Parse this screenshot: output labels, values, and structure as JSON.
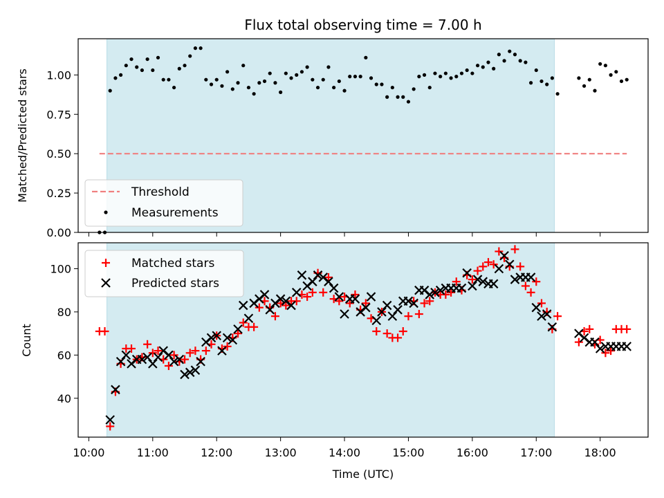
{
  "chart_data": [
    {
      "type": "scatter",
      "title": "Flux total observing time = 7.00 h",
      "xlabel": "",
      "ylabel": "Matched/Predicted stars",
      "xlim": [
        "09:50",
        "18:45"
      ],
      "ylim": [
        0.0,
        1.23
      ],
      "yticks": [
        0.0,
        0.25,
        0.5,
        0.75,
        1.0
      ],
      "ytick_labels": [
        "0.00",
        "0.25",
        "0.50",
        "0.75",
        "1.00"
      ],
      "shaded_interval": [
        "10:17",
        "17:17"
      ],
      "shade_color": "#d4ebf1",
      "threshold": {
        "name": "Threshold",
        "y": 0.5,
        "x_range": [
          "10:10",
          "18:25"
        ],
        "color": "#f07f7f"
      },
      "series": [
        {
          "name": "Measurements",
          "marker": "dot",
          "color": "#000000",
          "x": [
            "10:10",
            "10:15",
            "10:20",
            "10:25",
            "10:30",
            "10:35",
            "10:40",
            "10:45",
            "10:50",
            "10:55",
            "11:00",
            "11:05",
            "11:10",
            "11:15",
            "11:20",
            "11:25",
            "11:30",
            "11:35",
            "11:40",
            "11:45",
            "11:50",
            "11:55",
            "12:00",
            "12:05",
            "12:10",
            "12:15",
            "12:20",
            "12:25",
            "12:30",
            "12:35",
            "12:40",
            "12:45",
            "12:50",
            "12:55",
            "13:00",
            "13:05",
            "13:10",
            "13:15",
            "13:20",
            "13:25",
            "13:30",
            "13:35",
            "13:40",
            "13:45",
            "13:50",
            "13:55",
            "14:00",
            "14:05",
            "14:10",
            "14:15",
            "14:20",
            "14:25",
            "14:30",
            "14:35",
            "14:40",
            "14:45",
            "14:50",
            "14:55",
            "15:00",
            "15:05",
            "15:10",
            "15:15",
            "15:20",
            "15:25",
            "15:30",
            "15:35",
            "15:40",
            "15:45",
            "15:50",
            "15:55",
            "16:00",
            "16:05",
            "16:10",
            "16:15",
            "16:20",
            "16:25",
            "16:30",
            "16:35",
            "16:40",
            "16:45",
            "16:50",
            "16:55",
            "17:00",
            "17:05",
            "17:10",
            "17:15",
            "17:20",
            "17:40",
            "17:45",
            "17:50",
            "17:55",
            "18:00",
            "18:05",
            "18:10",
            "18:15",
            "18:20",
            "18:25"
          ],
          "y": [
            0.0,
            0.0,
            0.9,
            0.98,
            1.0,
            1.06,
            1.1,
            1.05,
            1.03,
            1.1,
            1.03,
            1.11,
            0.97,
            0.97,
            0.92,
            1.04,
            1.06,
            1.12,
            1.17,
            1.17,
            0.97,
            0.94,
            0.97,
            0.93,
            1.02,
            0.91,
            0.95,
            1.06,
            0.92,
            0.88,
            0.95,
            0.96,
            1.01,
            0.95,
            0.89,
            1.01,
            0.98,
            1.0,
            1.02,
            1.05,
            0.97,
            0.92,
            0.97,
            1.05,
            0.92,
            0.96,
            0.9,
            0.99,
            0.99,
            0.99,
            1.11,
            0.98,
            0.94,
            0.94,
            0.86,
            0.92,
            0.86,
            0.86,
            0.83,
            0.91,
            0.99,
            1.0,
            0.92,
            1.01,
            0.99,
            1.01,
            0.98,
            0.99,
            1.01,
            1.03,
            1.01,
            1.06,
            1.05,
            1.08,
            1.04,
            1.13,
            1.09,
            1.15,
            1.13,
            1.09,
            1.08,
            0.95,
            1.03,
            0.96,
            0.94,
            0.98,
            0.88,
            0.98,
            0.93,
            0.97,
            0.9,
            1.07,
            1.06,
            1.0,
            1.02,
            0.96,
            0.97
          ]
        }
      ],
      "legend": {
        "location": "lower-left",
        "entries": [
          "Threshold",
          "Measurements"
        ]
      }
    },
    {
      "type": "scatter",
      "title": "",
      "xlabel": "Time (UTC)",
      "ylabel": "Count",
      "xlim": [
        "09:50",
        "18:45"
      ],
      "ylim": [
        22,
        112
      ],
      "yticks": [
        40,
        60,
        80,
        100
      ],
      "xticks": [
        "10:00",
        "11:00",
        "12:00",
        "13:00",
        "14:00",
        "15:00",
        "16:00",
        "17:00",
        "18:00"
      ],
      "shaded_interval": [
        "10:17",
        "17:17"
      ],
      "series": [
        {
          "name": "Matched stars",
          "marker": "plus",
          "color": "#ff0000",
          "x": [
            "10:10",
            "10:15",
            "10:20",
            "10:25",
            "10:30",
            "10:35",
            "10:40",
            "10:45",
            "10:50",
            "10:55",
            "11:00",
            "11:05",
            "11:10",
            "11:15",
            "11:20",
            "11:25",
            "11:30",
            "11:35",
            "11:40",
            "11:45",
            "11:50",
            "11:55",
            "12:00",
            "12:05",
            "12:10",
            "12:15",
            "12:20",
            "12:25",
            "12:30",
            "12:35",
            "12:40",
            "12:45",
            "12:50",
            "12:55",
            "13:00",
            "13:05",
            "13:10",
            "13:15",
            "13:20",
            "13:25",
            "13:30",
            "13:35",
            "13:40",
            "13:45",
            "13:50",
            "13:55",
            "14:00",
            "14:05",
            "14:10",
            "14:15",
            "14:20",
            "14:25",
            "14:30",
            "14:35",
            "14:40",
            "14:45",
            "14:50",
            "14:55",
            "15:00",
            "15:05",
            "15:10",
            "15:15",
            "15:20",
            "15:25",
            "15:30",
            "15:35",
            "15:40",
            "15:45",
            "15:50",
            "15:55",
            "16:00",
            "16:05",
            "16:10",
            "16:15",
            "16:20",
            "16:25",
            "16:30",
            "16:35",
            "16:40",
            "16:45",
            "16:50",
            "16:55",
            "17:00",
            "17:05",
            "17:10",
            "17:15",
            "17:20",
            "17:40",
            "17:45",
            "17:50",
            "17:55",
            "18:00",
            "18:05",
            "18:10",
            "18:15",
            "18:20",
            "18:25"
          ],
          "y": [
            71,
            71,
            27,
            43,
            56,
            63,
            63,
            58,
            59,
            65,
            61,
            62,
            58,
            55,
            60,
            57,
            58,
            61,
            62,
            58,
            62,
            65,
            69,
            63,
            64,
            68,
            70,
            75,
            73,
            73,
            82,
            85,
            82,
            78,
            84,
            83,
            85,
            85,
            88,
            87,
            89,
            98,
            89,
            96,
            86,
            85,
            87,
            84,
            88,
            81,
            84,
            77,
            71,
            80,
            70,
            68,
            68,
            71,
            78,
            85,
            79,
            84,
            85,
            89,
            88,
            88,
            89,
            94,
            90,
            97,
            95,
            99,
            101,
            103,
            102,
            108,
            105,
            101,
            109,
            101,
            92,
            89,
            94,
            84,
            80,
            72,
            78,
            66,
            71,
            72,
            65,
            67,
            61,
            62,
            72,
            72,
            72
          ],
          "count_override": null
        },
        {
          "name": "Predicted stars",
          "marker": "x",
          "color": "#000000",
          "x": [
            "10:20",
            "10:25",
            "10:30",
            "10:35",
            "10:40",
            "10:45",
            "10:50",
            "10:55",
            "11:00",
            "11:05",
            "11:10",
            "11:15",
            "11:20",
            "11:25",
            "11:30",
            "11:35",
            "11:40",
            "11:45",
            "11:50",
            "11:55",
            "12:00",
            "12:05",
            "12:10",
            "12:15",
            "12:20",
            "12:25",
            "12:30",
            "12:35",
            "12:40",
            "12:45",
            "12:50",
            "12:55",
            "13:00",
            "13:05",
            "13:10",
            "13:15",
            "13:20",
            "13:25",
            "13:30",
            "13:35",
            "13:40",
            "13:45",
            "13:50",
            "13:55",
            "14:00",
            "14:05",
            "14:10",
            "14:15",
            "14:20",
            "14:25",
            "14:30",
            "14:35",
            "14:40",
            "14:45",
            "14:50",
            "14:55",
            "15:00",
            "15:05",
            "15:10",
            "15:15",
            "15:20",
            "15:25",
            "15:30",
            "15:35",
            "15:40",
            "15:45",
            "15:50",
            "15:55",
            "16:00",
            "16:05",
            "16:10",
            "16:15",
            "16:20",
            "16:25",
            "16:30",
            "16:35",
            "16:40",
            "16:45",
            "16:50",
            "16:55",
            "17:00",
            "17:05",
            "17:10",
            "17:15",
            "17:40",
            "17:45",
            "17:50",
            "17:55",
            "18:00",
            "18:05",
            "18:10",
            "18:15",
            "18:20",
            "18:25"
          ],
          "y": [
            30,
            44,
            57,
            60,
            56,
            58,
            58,
            59,
            56,
            59,
            62,
            60,
            57,
            58,
            51,
            52,
            53,
            57,
            66,
            68,
            69,
            62,
            68,
            67,
            72,
            83,
            77,
            84,
            86,
            88,
            81,
            84,
            86,
            85,
            83,
            89,
            97,
            92,
            94,
            97,
            96,
            94,
            91,
            87,
            79,
            86,
            86,
            80,
            82,
            87,
            76,
            80,
            83,
            78,
            81,
            85,
            85,
            84,
            90,
            90,
            88,
            89,
            90,
            91,
            91,
            91,
            91,
            98,
            92,
            95,
            94,
            93,
            93,
            100,
            106,
            102,
            95,
            96,
            96,
            96,
            82,
            78,
            79,
            73,
            70,
            68,
            66,
            66,
            63,
            64,
            64,
            64,
            64,
            64
          ],
          "note": ""
        }
      ],
      "legend": {
        "location": "upper-left",
        "entries": [
          "Matched stars",
          "Predicted stars"
        ]
      }
    }
  ],
  "labels": {
    "title": "Flux total observing time = 7.00 h",
    "top_ylabel": "Matched/Predicted stars",
    "bottom_ylabel": "Count",
    "xlabel": "Time (UTC)",
    "legend_threshold": "Threshold",
    "legend_measurements": "Measurements",
    "legend_matched": "Matched stars",
    "legend_predicted": "Predicted stars"
  },
  "colors": {
    "shade": "#d4ebf1",
    "shade_edge": "#b7dbe6",
    "threshold": "#f07f7f",
    "matched": "#ff0000",
    "predicted": "#000000",
    "measurement": "#000000"
  }
}
